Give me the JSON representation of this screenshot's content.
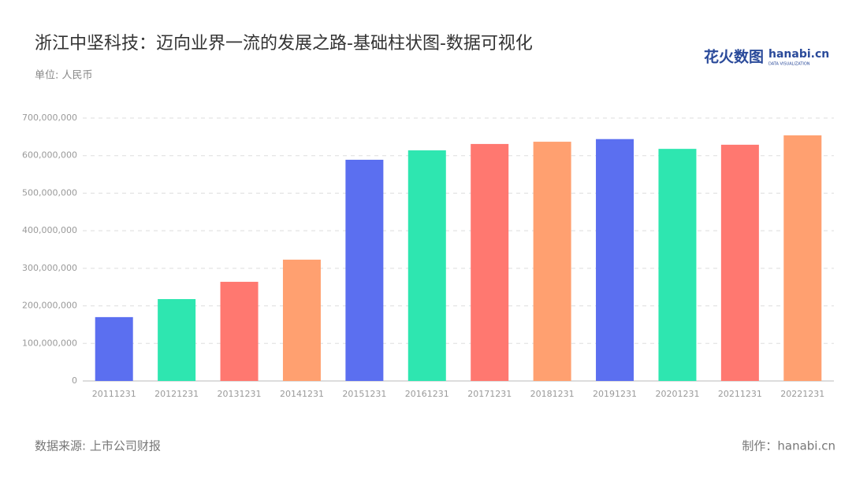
{
  "chart_data": {
    "type": "bar",
    "title": "浙江中坚科技：迈向业界一流的发展之路-基础柱状图-数据可视化",
    "subtitle": "单位: 人民币",
    "source": "数据来源: 上市公司财报",
    "credit": "制作：hanabi.cn",
    "logo": {
      "name": "花火数图",
      "site": "hanabi.cn",
      "tagline": "DATA VISUALIZATION"
    },
    "categories": [
      "20111231",
      "20121231",
      "20131231",
      "20141231",
      "20151231",
      "20161231",
      "20171231",
      "20181231",
      "20191231",
      "20201231",
      "20211231",
      "20221231"
    ],
    "values": [
      170000000,
      218000000,
      264000000,
      323000000,
      589000000,
      614000000,
      631000000,
      637000000,
      644000000,
      618000000,
      629000000,
      654000000
    ],
    "colors": [
      "#5b6ff0",
      "#2ee6b0",
      "#ff7870",
      "#ffa070",
      "#5b6ff0",
      "#2ee6b0",
      "#ff7870",
      "#ffa070",
      "#5b6ff0",
      "#2ee6b0",
      "#ff7870",
      "#ffa070"
    ],
    "ylim": [
      0,
      700000000
    ],
    "yticks": [
      0,
      {
        "value": 100000000,
        "label": "100,000,000"
      },
      {
        "value": 200000000,
        "label": "200,000,000"
      },
      {
        "value": 300000000,
        "label": "300,000,000"
      },
      {
        "value": 400000000,
        "label": "400,000,000"
      },
      {
        "value": 500000000,
        "label": "500,000,000"
      },
      {
        "value": 600000000,
        "label": "600,000,000"
      },
      {
        "value": 700000000,
        "label": "700,000,000"
      }
    ],
    "grid": true
  }
}
